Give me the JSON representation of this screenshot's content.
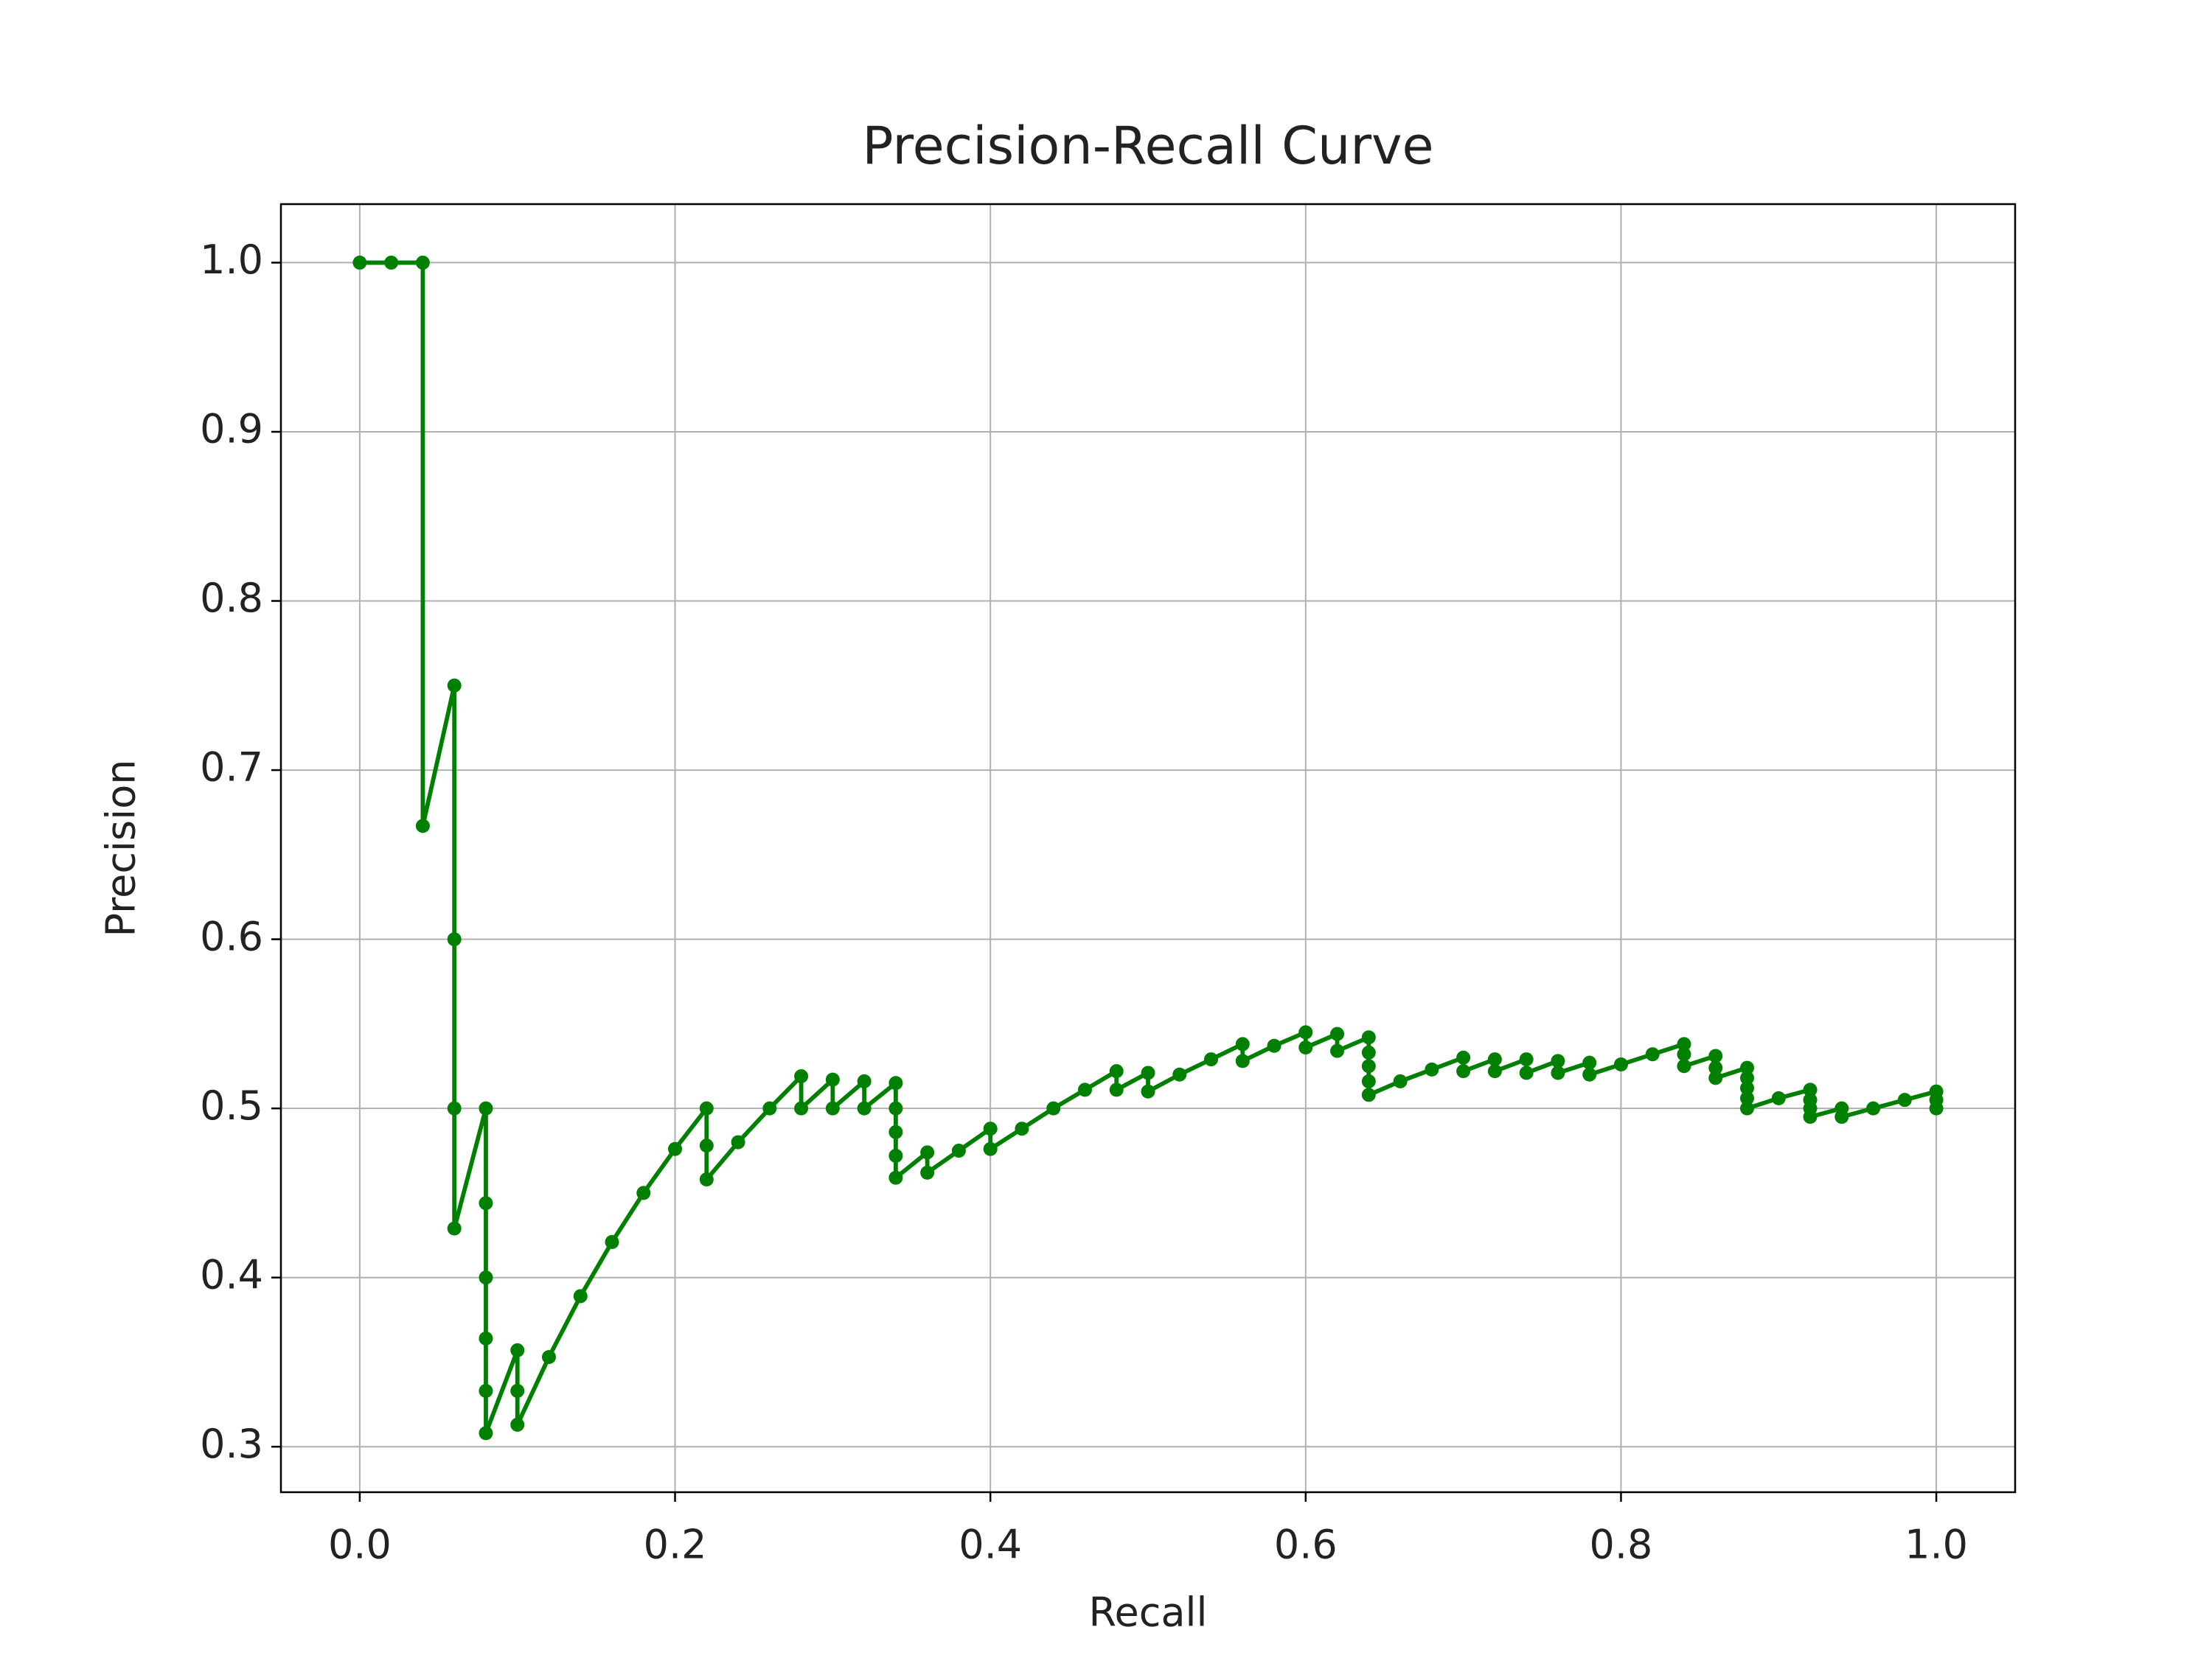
{
  "chart_data": {
    "type": "line",
    "title": "Precision-Recall Curve",
    "xlabel": "Recall",
    "ylabel": "Precision",
    "color": "#008000",
    "markers": true,
    "grid": true,
    "xlim": [
      -0.05,
      1.05
    ],
    "ylim": [
      0.2731,
      1.0346
    ],
    "xticks": [
      {
        "value": 0,
        "label": "0.0"
      },
      0.2,
      0.4,
      0.6,
      0.8,
      {
        "value": 1,
        "label": "1.0"
      }
    ],
    "yticks": [
      0.3,
      0.4,
      0.5,
      0.6,
      0.7,
      0.8,
      0.9,
      {
        "value": 1,
        "label": "1.0"
      }
    ],
    "x": [
      0,
      0.02,
      0.04,
      0.04,
      0.06,
      0.06,
      0.06,
      0.06,
      0.08,
      0.08,
      0.08,
      0.08,
      0.08,
      0.08,
      0.1,
      0.1,
      0.1,
      0.12,
      0.14,
      0.16,
      0.18,
      0.2,
      0.22,
      0.22,
      0.22,
      0.24,
      0.26,
      0.28,
      0.28,
      0.3,
      0.3,
      0.32,
      0.32,
      0.34,
      0.34,
      0.34,
      0.34,
      0.34,
      0.36,
      0.36,
      0.38,
      0.4,
      0.4,
      0.42,
      0.44,
      0.46,
      0.48,
      0.48,
      0.5,
      0.5,
      0.52,
      0.54,
      0.56,
      0.56,
      0.58,
      0.6,
      0.6,
      0.62,
      0.62,
      0.64,
      0.64,
      0.64,
      0.64,
      0.64,
      0.66,
      0.68,
      0.7,
      0.7,
      0.72,
      0.72,
      0.74,
      0.74,
      0.76,
      0.76,
      0.78,
      0.78,
      0.8,
      0.82,
      0.84,
      0.84,
      0.84,
      0.86,
      0.86,
      0.86,
      0.88,
      0.88,
      0.88,
      0.88,
      0.88,
      0.9,
      0.92,
      0.92,
      0.92,
      0.92,
      0.94,
      0.94,
      0.96,
      0.98,
      1,
      1,
      1
    ],
    "values": [
      1,
      1,
      1,
      0.667,
      0.75,
      0.6,
      0.5,
      0.429,
      0.5,
      0.444,
      0.4,
      0.364,
      0.333,
      0.308,
      0.357,
      0.333,
      0.313,
      0.353,
      0.389,
      0.421,
      0.45,
      0.476,
      0.5,
      0.478,
      0.458,
      0.48,
      0.5,
      0.519,
      0.5,
      0.517,
      0.5,
      0.516,
      0.5,
      0.515,
      0.5,
      0.486,
      0.472,
      0.459,
      0.474,
      0.462,
      0.475,
      0.488,
      0.476,
      0.488,
      0.5,
      0.511,
      0.522,
      0.511,
      0.521,
      0.51,
      0.52,
      0.529,
      0.538,
      0.528,
      0.537,
      0.545,
      0.536,
      0.544,
      0.534,
      0.542,
      0.533,
      0.525,
      0.516,
      0.508,
      0.516,
      0.523,
      0.53,
      0.522,
      0.529,
      0.522,
      0.529,
      0.521,
      0.528,
      0.521,
      0.527,
      0.52,
      0.526,
      0.532,
      0.538,
      0.532,
      0.525,
      0.531,
      0.524,
      0.518,
      0.524,
      0.518,
      0.512,
      0.506,
      0.5,
      0.506,
      0.511,
      0.505,
      0.5,
      0.495,
      0.5,
      0.495,
      0.5,
      0.505,
      0.51,
      0.505,
      0.5
    ]
  }
}
